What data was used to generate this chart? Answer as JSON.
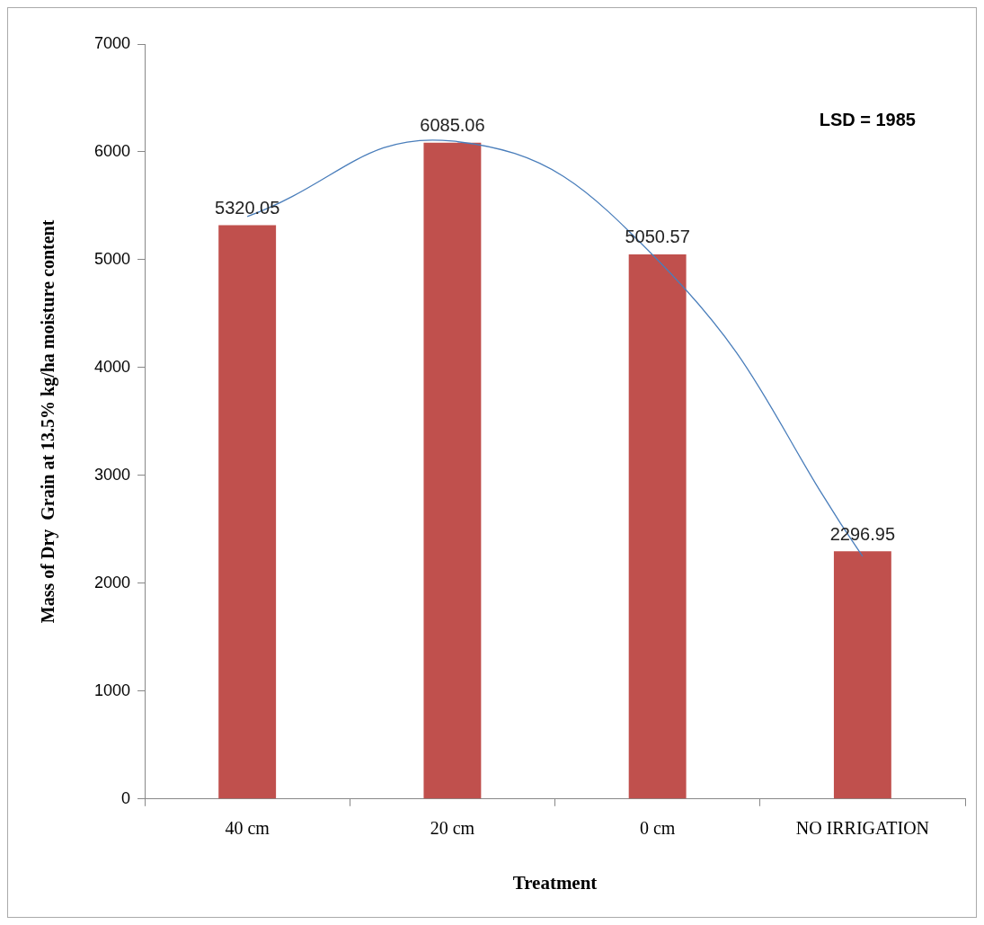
{
  "chart_data": {
    "type": "bar",
    "xlabel": "Treatment",
    "ylabel": "Mass of Dry  Grain at 13.5% kg/ha moisture content",
    "categories": [
      "40 cm",
      "20 cm",
      "0 cm",
      "NO IRRIGATION"
    ],
    "series": [
      {
        "color": "#c0504d",
        "values": [
          5320.05,
          6085.06,
          5050.57,
          2296.95
        ],
        "value_labels": [
          "5320.05",
          "6085.06",
          "5050.57",
          "2296.95"
        ]
      },
      {
        "type": "line",
        "color": "#4a7ebb",
        "values": [
          5400,
          6100,
          5000,
          2250
        ]
      }
    ],
    "ylim": [
      0,
      7000
    ],
    "yticks": [
      0,
      1000,
      2000,
      3000,
      4000,
      5000,
      6000,
      7000
    ],
    "grid": false,
    "legend": false,
    "annotations": [
      "LSD = 1985"
    ]
  }
}
